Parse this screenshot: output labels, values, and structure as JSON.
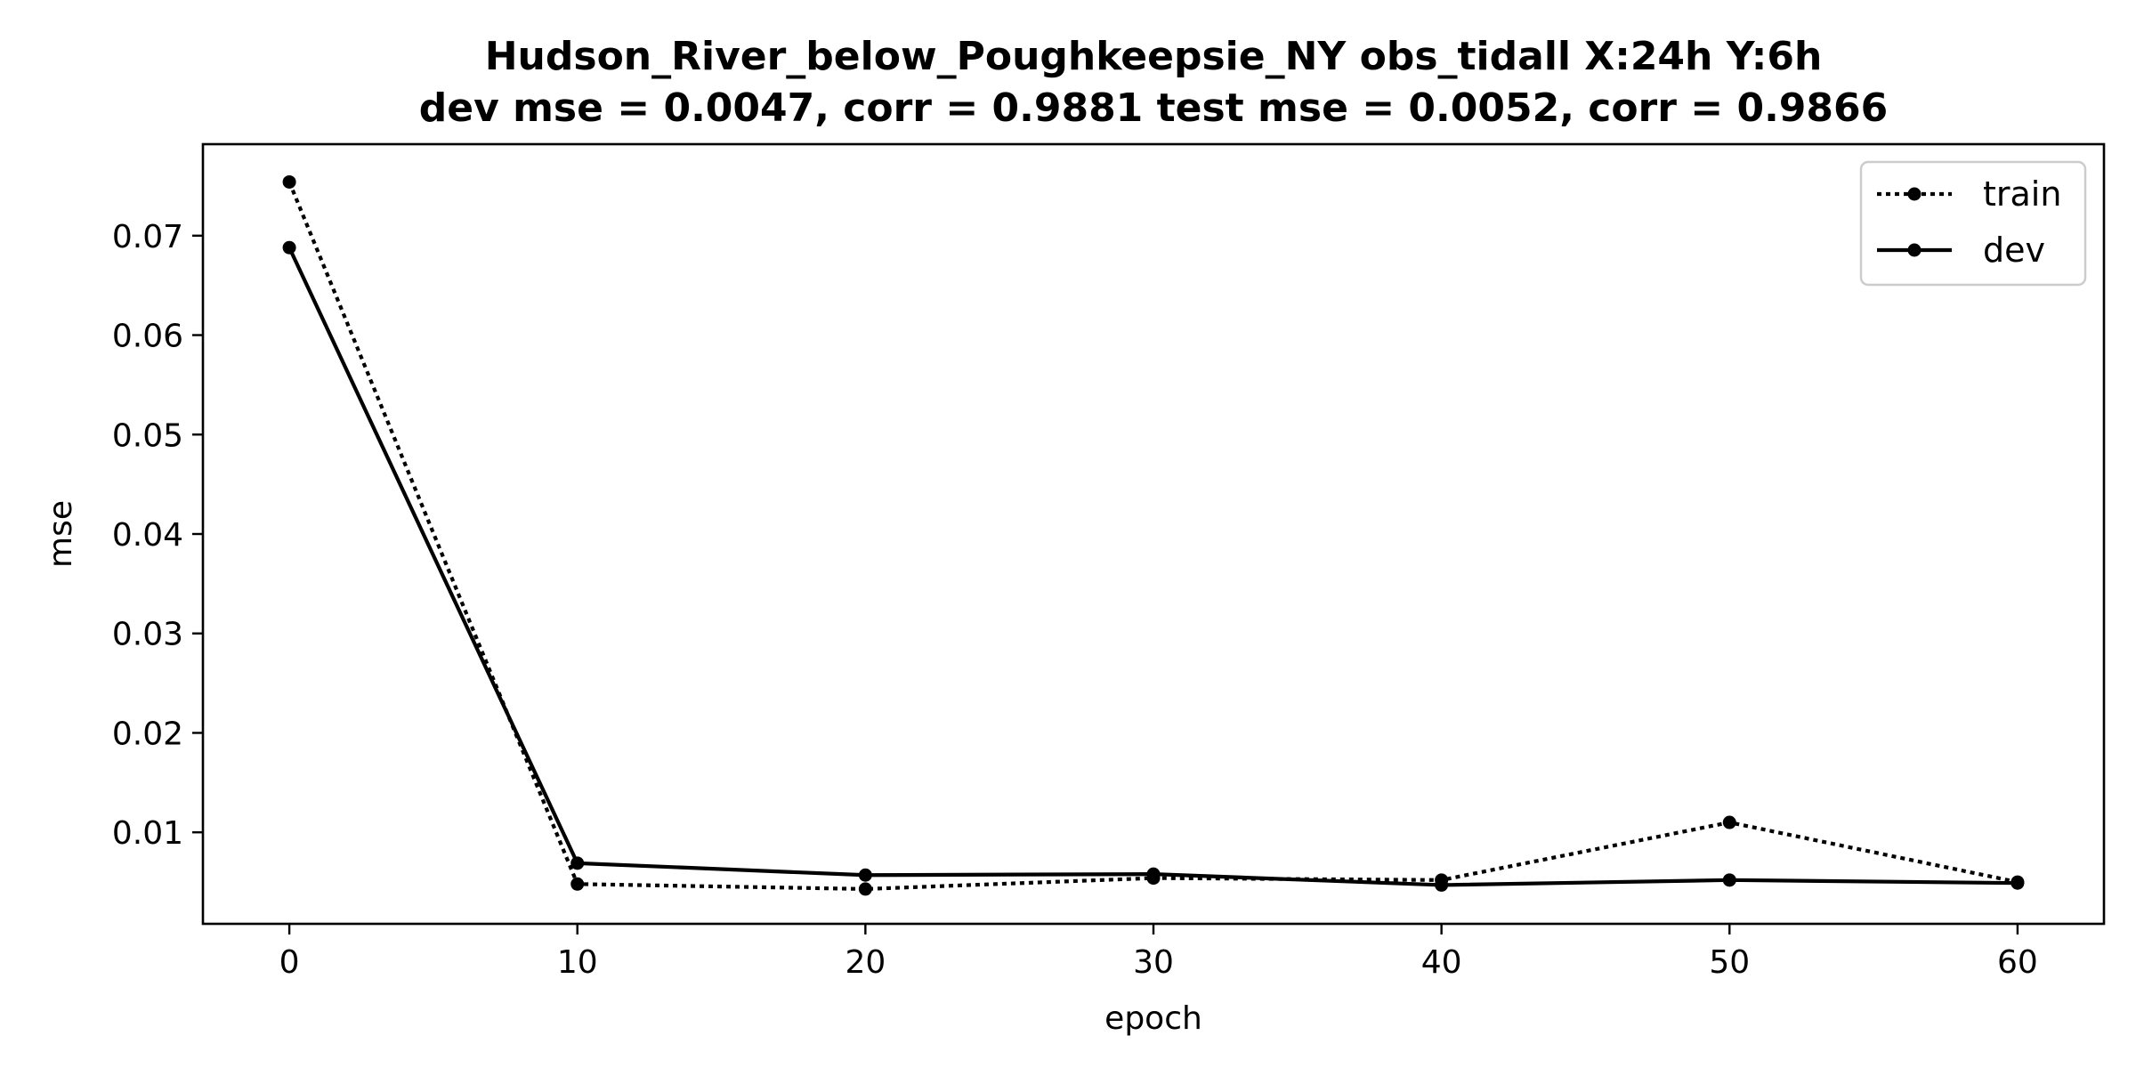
{
  "chart_data": {
    "type": "line",
    "title": "Hudson_River_below_Poughkeepsie_NY   obs_tidall   X:24h   Y:6h",
    "subtitle": "dev mse = 0.0047, corr = 0.9881   test mse = 0.0052, corr = 0.9866",
    "xlabel": "epoch",
    "ylabel": "mse",
    "x": [
      0,
      10,
      20,
      30,
      40,
      50,
      60
    ],
    "xlim": [
      -3,
      63
    ],
    "ylim": [
      0.0008,
      0.0792
    ],
    "xticks": [
      0,
      10,
      20,
      30,
      40,
      50,
      60
    ],
    "yticks": [
      0.01,
      0.02,
      0.03,
      0.04,
      0.05,
      0.06,
      0.07
    ],
    "xtick_labels": [
      "0",
      "10",
      "20",
      "30",
      "40",
      "50",
      "60"
    ],
    "ytick_labels": [
      "0.01",
      "0.02",
      "0.03",
      "0.04",
      "0.05",
      "0.06",
      "0.07"
    ],
    "series": [
      {
        "name": "train",
        "style": "dotted",
        "color": "#000000",
        "values": [
          0.0754,
          0.0048,
          0.0043,
          0.0054,
          0.0052,
          0.011,
          0.005
        ]
      },
      {
        "name": "dev",
        "style": "solid",
        "color": "#000000",
        "values": [
          0.0688,
          0.0069,
          0.0057,
          0.0058,
          0.0047,
          0.0052,
          0.0049
        ]
      }
    ],
    "legend_position": "top-right",
    "grid": false
  }
}
